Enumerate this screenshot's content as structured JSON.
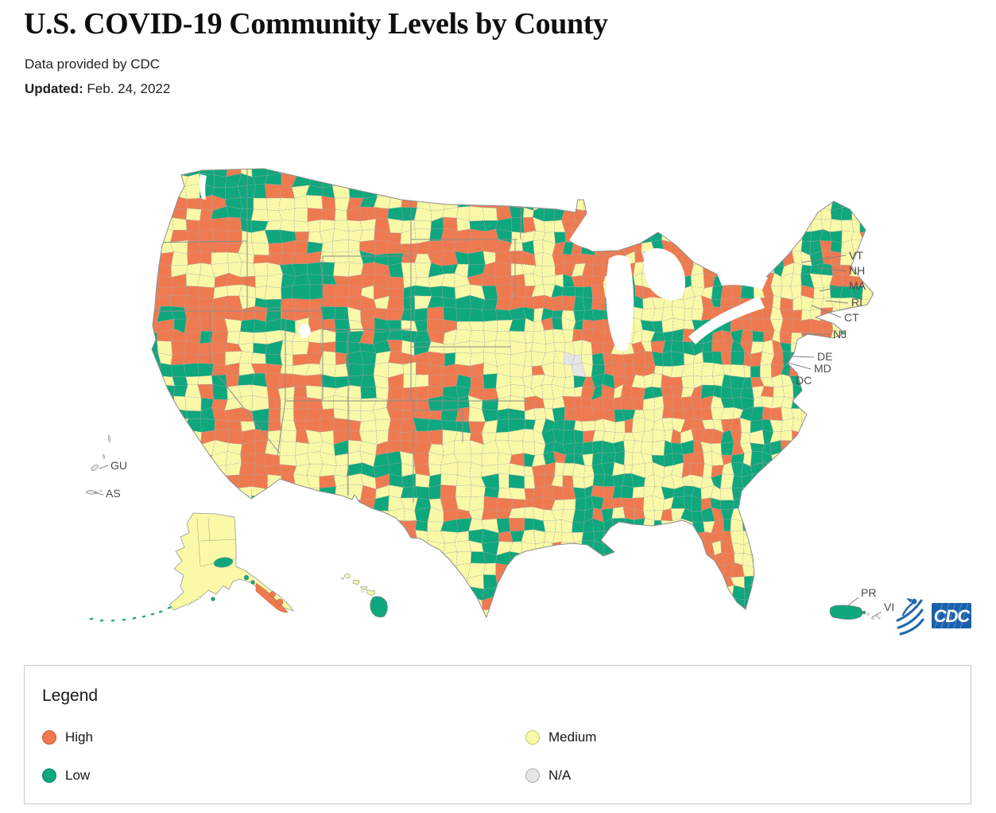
{
  "header": {
    "title": "U.S. COVID-19 Community Levels by County",
    "source": "Data provided by CDC",
    "updated_label": "Updated:",
    "updated_date": "Feb. 24, 2022"
  },
  "map": {
    "levels": [
      {
        "id": "high",
        "label": "High",
        "color": "#EF7A50",
        "border": "#C8592E"
      },
      {
        "id": "medium",
        "label": "Medium",
        "color": "#F9F9A8",
        "border": "#C9C96A"
      },
      {
        "id": "low",
        "label": "Low",
        "color": "#0FA77D",
        "border": "#0B8161"
      },
      {
        "id": "na",
        "label": "N/A",
        "color": "#E6E6E6",
        "border": "#ABABAB"
      }
    ],
    "level_distribution": {
      "high": 0.34,
      "medium": 0.41,
      "low": 0.245,
      "na": 0.005
    },
    "state_callouts": [
      "VT",
      "NH",
      "MA",
      "RI",
      "CT",
      "NJ",
      "DE",
      "MD",
      "DC"
    ],
    "territory_labels": [
      "GU",
      "AS",
      "PR",
      "VI"
    ],
    "cdc_logo_text": "CDC"
  },
  "legend": {
    "title": "Legend",
    "items": [
      {
        "label": "High",
        "level": "high"
      },
      {
        "label": "Medium",
        "level": "medium"
      },
      {
        "label": "Low",
        "level": "low"
      },
      {
        "label": "N/A",
        "level": "na"
      }
    ]
  }
}
